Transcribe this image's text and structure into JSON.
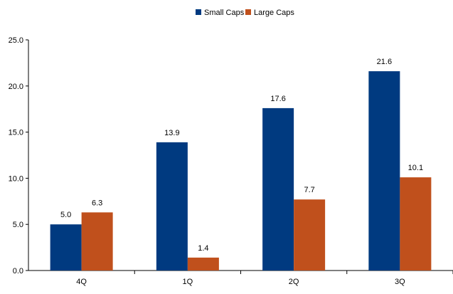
{
  "chart_data": {
    "type": "bar",
    "title": "",
    "xlabel": "",
    "ylabel": "",
    "categories": [
      "4Q",
      "1Q",
      "2Q",
      "3Q"
    ],
    "series": [
      {
        "name": "Small Caps",
        "values": [
          5.0,
          13.9,
          17.6,
          21.6
        ],
        "color": "#003a80"
      },
      {
        "name": "Large Caps",
        "values": [
          6.3,
          1.4,
          7.7,
          10.1
        ],
        "color": "#c0501c"
      }
    ],
    "ylim": [
      0,
      25
    ],
    "yticks": [
      "0.0",
      "5.0",
      "10.0",
      "15.0",
      "20.0",
      "25.0"
    ],
    "grid": false,
    "legend_position": "top-center",
    "data_labels": true
  }
}
